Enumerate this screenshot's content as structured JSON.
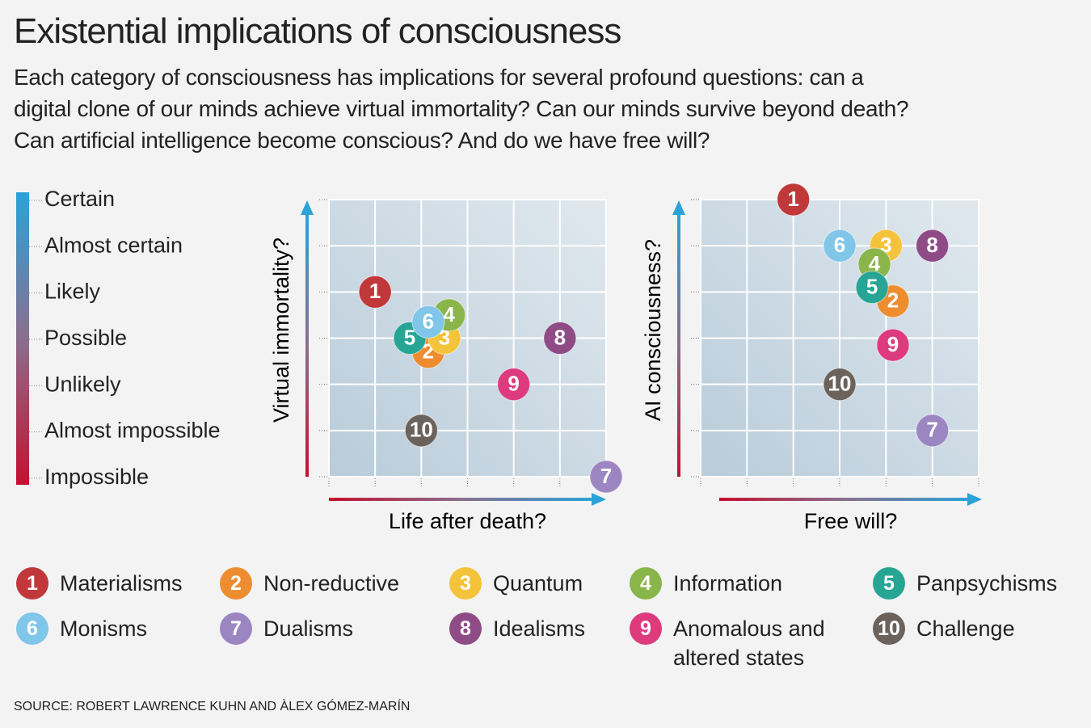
{
  "title": "Existential implications of consciousness",
  "subtitle": "Each category of consciousness has implications for several profound questions: can a digital clone of our minds achieve virtual  immortality? Can our minds survive beyond death? Can artificial intelligence become conscious?  And do we have free will?",
  "scale": [
    "Certain",
    "Almost certain",
    "Likely",
    "Possible",
    "Unlikely",
    "Almost impossible",
    "Impossible"
  ],
  "legend": [
    {
      "number": "1",
      "name": "Materialisms",
      "color": "#c1383a"
    },
    {
      "number": "2",
      "name": "Non-reductive",
      "color": "#ee8d2f"
    },
    {
      "number": "3",
      "name": "Quantum",
      "color": "#f5c33b"
    },
    {
      "number": "4",
      "name": "Information",
      "color": "#8ab54b"
    },
    {
      "number": "5",
      "name": "Panpsychisms",
      "color": "#26a594"
    },
    {
      "number": "6",
      "name": "Monisms",
      "color": "#7fc6e8"
    },
    {
      "number": "7",
      "name": "Dualisms",
      "color": "#9b86c2"
    },
    {
      "number": "8",
      "name": "Idealisms",
      "color": "#8e4b86"
    },
    {
      "number": "9",
      "name": "Anomalous and altered states",
      "color": "#dd3b7e"
    },
    {
      "number": "10",
      "name": "Challenge",
      "color": "#6b625c"
    }
  ],
  "chart_data": [
    {
      "type": "scatter",
      "x_label": "Life after death?",
      "y_label": "Virtual immortality?",
      "x": [
        1,
        2.15,
        2.5,
        2.6,
        1.75,
        2.15,
        6,
        5,
        4,
        2
      ],
      "y": [
        4,
        2.7,
        3,
        3.5,
        3,
        3.35,
        0,
        3,
        2,
        1
      ],
      "xlim": [
        0,
        6
      ],
      "ylim": [
        0,
        6
      ],
      "xticks": [
        0,
        1,
        2,
        3,
        4,
        5,
        6
      ],
      "yticks": [
        0,
        1,
        2,
        3,
        4,
        5,
        6
      ],
      "grid": true
    },
    {
      "type": "scatter",
      "x_label": "Free will?",
      "y_label": "AI consciousness?",
      "x": [
        2,
        4.15,
        4,
        3.75,
        3.7,
        3,
        5,
        5,
        4.15,
        3
      ],
      "y": [
        6,
        3.8,
        5,
        4.6,
        4.1,
        5,
        1,
        5,
        2.85,
        2
      ],
      "xlim": [
        0,
        6
      ],
      "ylim": [
        0,
        6
      ],
      "xticks": [
        0,
        1,
        2,
        3,
        4,
        5,
        6
      ],
      "yticks": [
        0,
        1,
        2,
        3,
        4,
        5,
        6
      ],
      "grid": true
    }
  ],
  "source": "SOURCE:  ROBERT LAWRENCE KUHN AND ÀLEX GÓMEZ-MARÍN"
}
